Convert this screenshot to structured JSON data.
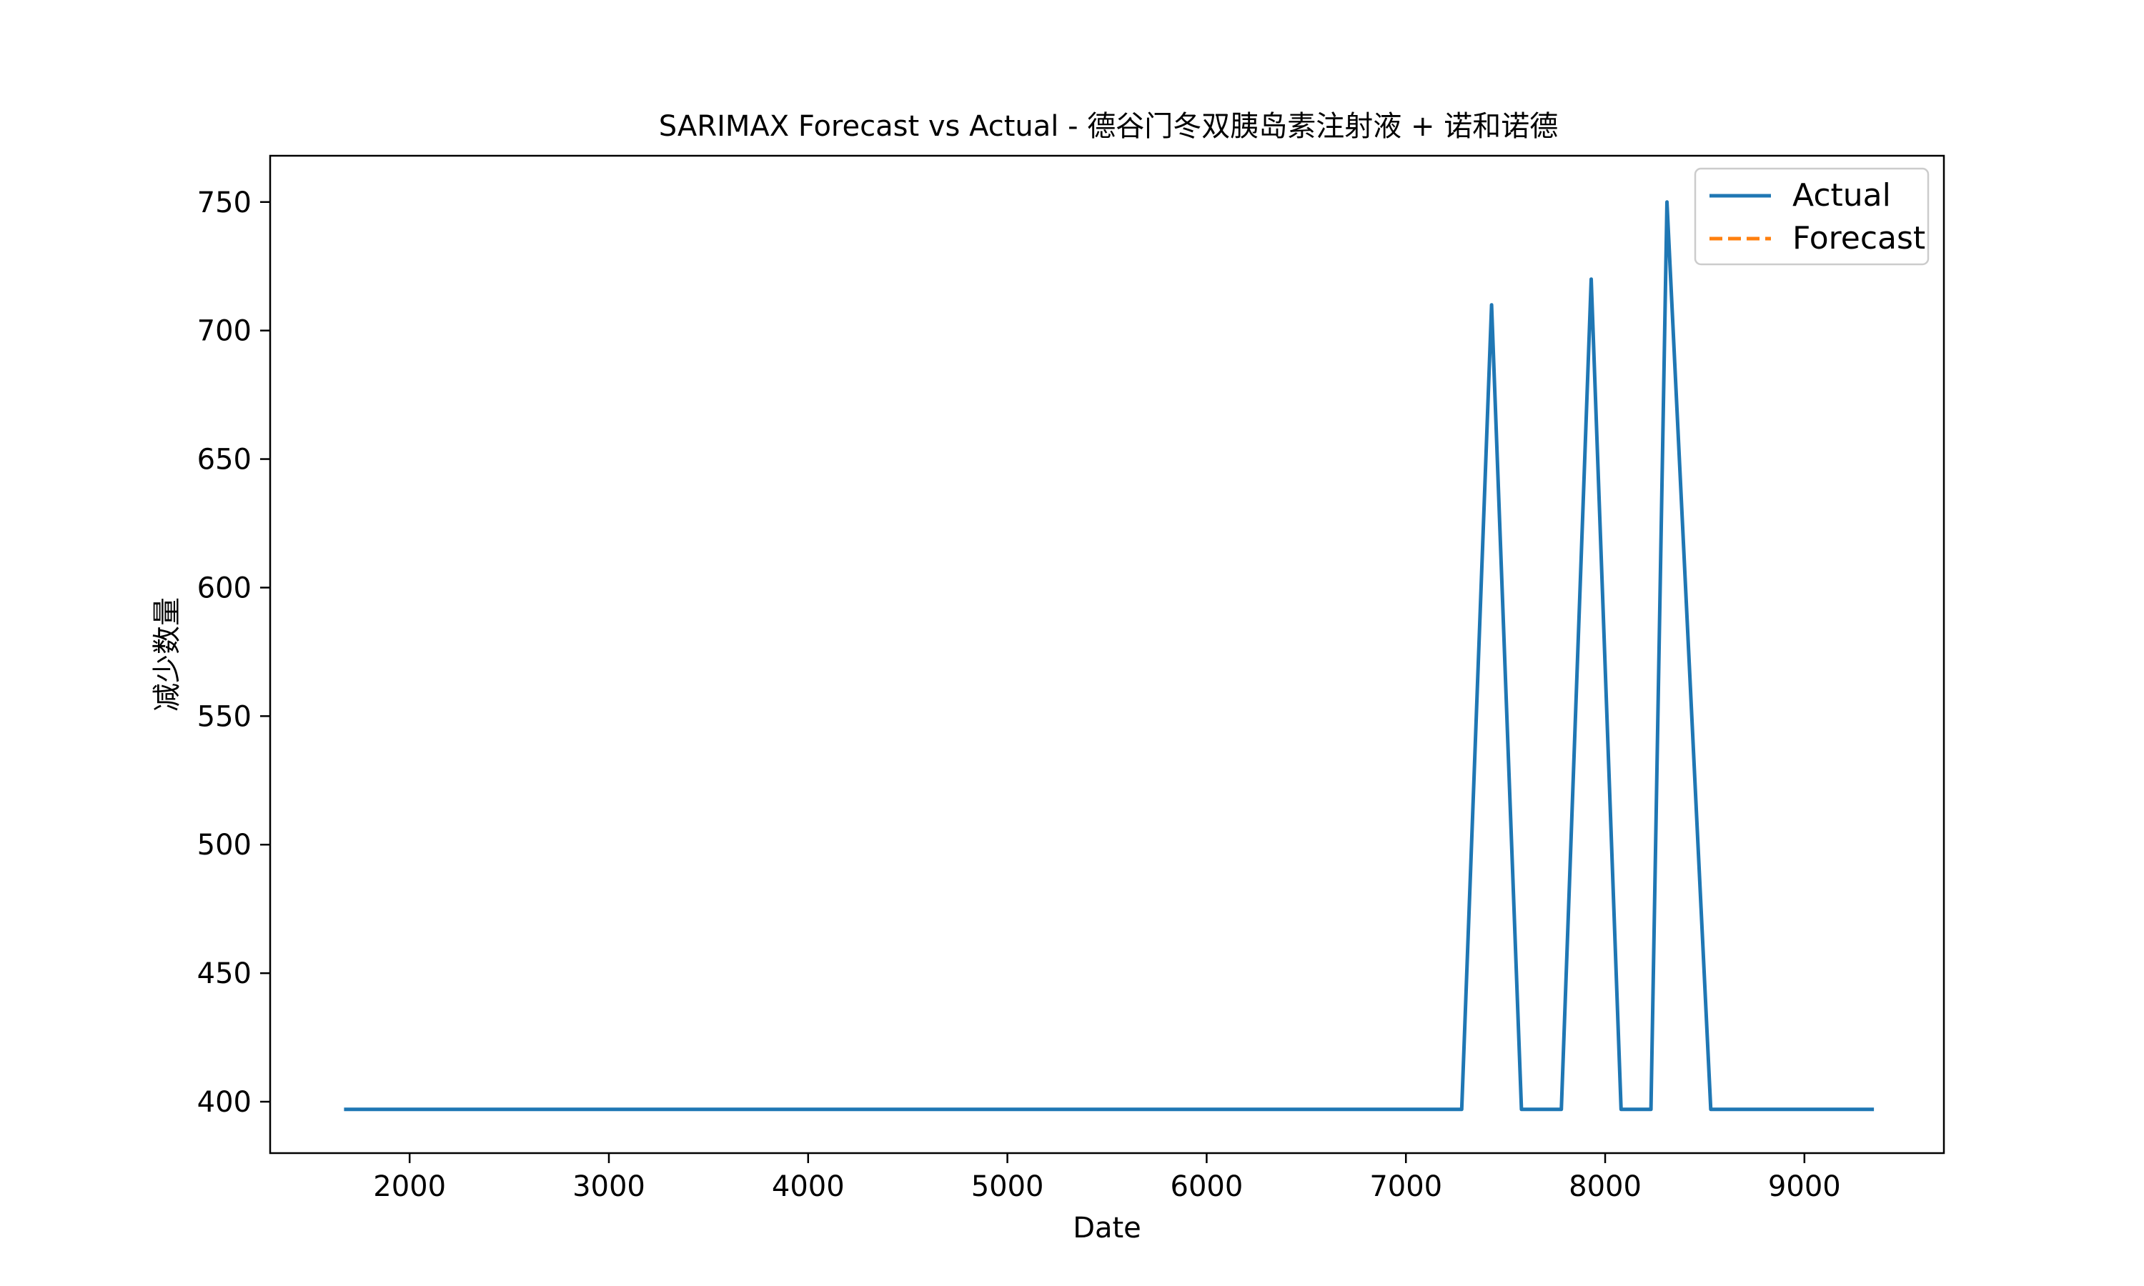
{
  "chart_data": {
    "type": "line",
    "title": "SARIMAX Forecast vs Actual - 德谷门冬双胰岛素注射液 + 诺和诺德",
    "xlabel": "Date",
    "ylabel": "减少数量",
    "xlim": [
      1300,
      9700
    ],
    "ylim": [
      380,
      768
    ],
    "x_ticks": [
      2000,
      3000,
      4000,
      5000,
      6000,
      7000,
      8000,
      9000
    ],
    "y_ticks": [
      400,
      450,
      500,
      550,
      600,
      650,
      700,
      750
    ],
    "grid": false,
    "legend_position": "top-right",
    "series": [
      {
        "name": "Actual",
        "color": "#1f77b4",
        "style": "solid",
        "x": [
          1680,
          7280,
          7430,
          7580,
          7780,
          7930,
          8080,
          8230,
          8310,
          8530,
          9340
        ],
        "y": [
          397,
          397,
          710,
          397,
          397,
          720,
          397,
          397,
          750,
          397,
          397
        ]
      },
      {
        "name": "Forecast",
        "color": "#ff7f0e",
        "style": "dashed",
        "x": [],
        "y": []
      }
    ]
  }
}
